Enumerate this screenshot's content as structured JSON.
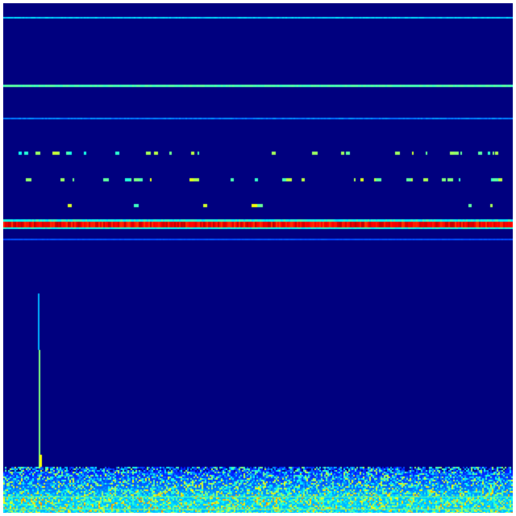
{
  "figure": {
    "type": "spectrogram",
    "colormap": "jet",
    "background_color": "#00007f",
    "frame_color": "#ffffff",
    "axes_visible": false,
    "colors": {
      "low": "#00007f",
      "mid_low": "#0000ff",
      "mid": "#00ffff",
      "mid_high": "#ffff00",
      "high": "#ff0000"
    }
  }
}
